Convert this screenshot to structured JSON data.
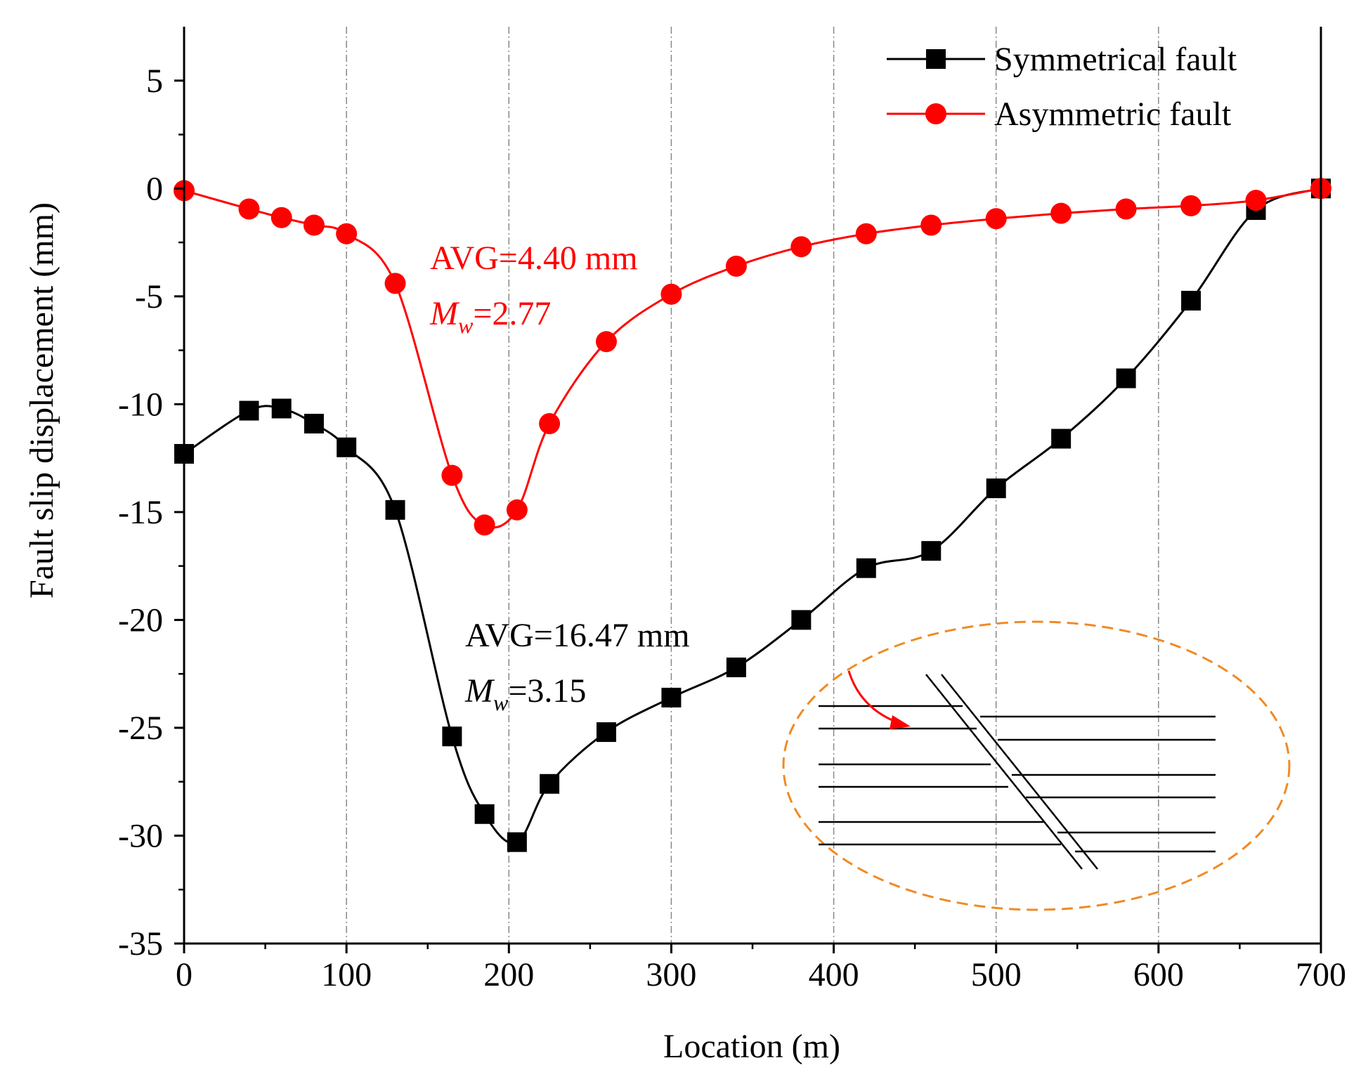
{
  "chart_data": {
    "type": "line",
    "title": "",
    "xlabel": "Location (m)",
    "ylabel": "Fault slip displacement (mm)",
    "xlim": [
      0,
      700
    ],
    "ylim": [
      -35,
      7.5
    ],
    "x_ticks": [
      0,
      100,
      200,
      300,
      400,
      500,
      600,
      700
    ],
    "x_tick_labels": [
      "0",
      "100",
      "200",
      "300",
      "400",
      "500",
      "600",
      "700"
    ],
    "y_ticks": [
      5,
      0,
      -5,
      -10,
      -15,
      -20,
      -25,
      -30,
      -35
    ],
    "y_tick_labels": [
      "5",
      "0",
      "-5",
      "-10",
      "-15",
      "-20",
      "-25",
      "-30",
      "-35"
    ],
    "vertical_grid": true,
    "legend_position": "top-right",
    "series": [
      {
        "name": "Symmetrical fault",
        "color": "#000000",
        "marker": "square",
        "x": [
          0,
          40,
          60,
          80,
          100,
          130,
          165,
          185,
          205,
          225,
          260,
          300,
          340,
          380,
          420,
          460,
          500,
          540,
          580,
          620,
          660,
          700
        ],
        "values": [
          -12.3,
          -10.3,
          -10.2,
          -10.9,
          -12.0,
          -14.9,
          -25.4,
          -29.0,
          -30.3,
          -27.6,
          -25.2,
          -23.6,
          -22.2,
          -20.0,
          -17.6,
          -16.8,
          -13.9,
          -11.6,
          -8.8,
          -5.2,
          -1.0,
          0.0
        ]
      },
      {
        "name": "Asymmetric fault",
        "color": "#ff0000",
        "marker": "circle",
        "x": [
          0,
          40,
          60,
          80,
          100,
          130,
          165,
          185,
          205,
          225,
          260,
          300,
          340,
          380,
          420,
          460,
          500,
          540,
          580,
          620,
          660,
          700
        ],
        "values": [
          -0.1,
          -0.95,
          -1.35,
          -1.7,
          -2.1,
          -4.4,
          -13.3,
          -15.6,
          -14.9,
          -10.9,
          -7.1,
          -4.9,
          -3.6,
          -2.7,
          -2.1,
          -1.7,
          -1.4,
          -1.15,
          -0.95,
          -0.8,
          -0.55,
          0.0
        ]
      }
    ],
    "annotations": [
      {
        "text_main": "AVG=4.40 mm",
        "mw_symbol": "M",
        "mw_sub": "w",
        "mw_value": "=2.77",
        "color": "#ff0000"
      },
      {
        "text_main": "AVG=16.47 mm",
        "mw_symbol": "M",
        "mw_sub": "w",
        "mw_value": "=3.15",
        "color": "#000000"
      }
    ],
    "inset_ellipse_color": "#f08a24",
    "inset_arrow_color": "#ff0000"
  }
}
